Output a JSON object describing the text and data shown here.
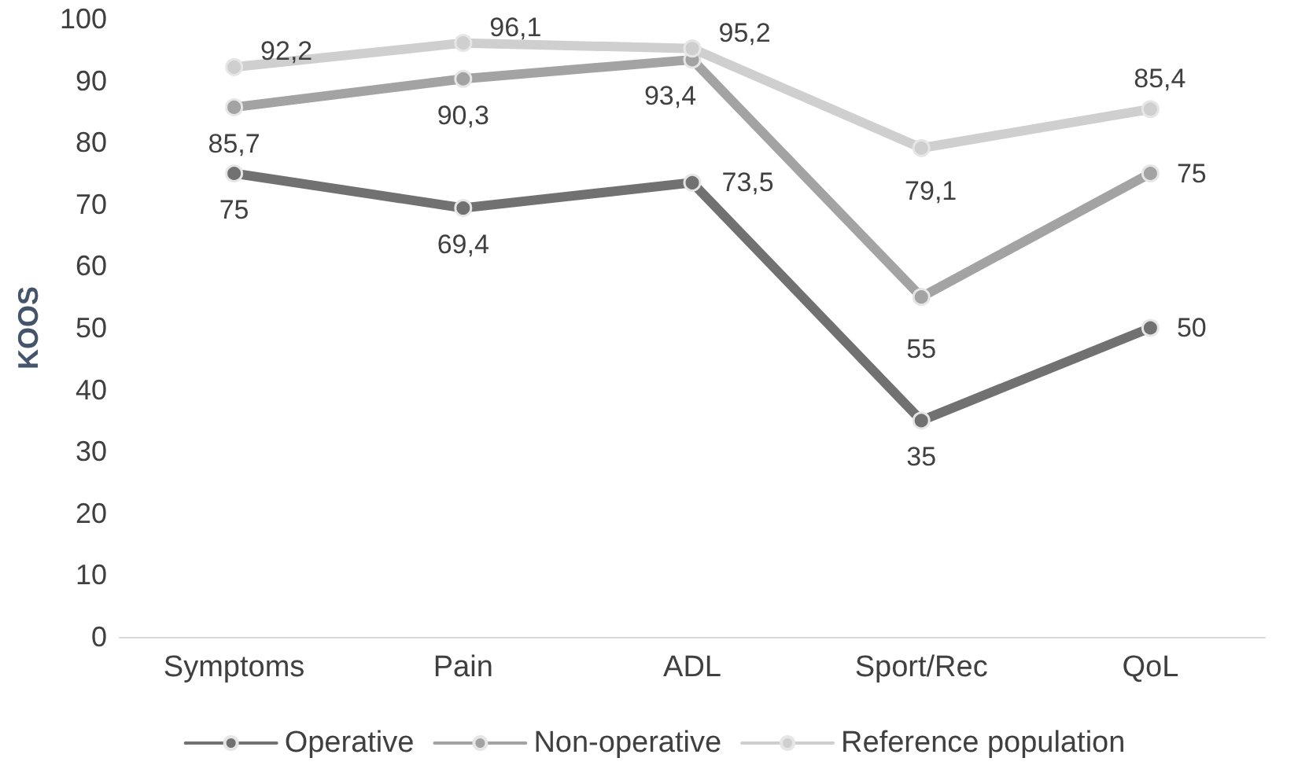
{
  "chart_data": {
    "type": "line",
    "ylabel": "KOOS",
    "categories": [
      "Symptoms",
      "Pain",
      "ADL",
      "Sport/Rec",
      "QoL"
    ],
    "ylim": [
      0,
      100
    ],
    "yticks": [
      0,
      10,
      20,
      30,
      40,
      50,
      60,
      70,
      80,
      90,
      100
    ],
    "grid": false,
    "legend": "bottom",
    "marker": "circle",
    "line_style": "solid",
    "series": [
      {
        "name": "Operative",
        "color": "#717171",
        "values": [
          75,
          69.4,
          73.5,
          35,
          50
        ],
        "value_labels": [
          "75",
          "69,4",
          "73,5",
          "35",
          "50"
        ]
      },
      {
        "name": "Non-operative",
        "color": "#a3a3a3",
        "values": [
          85.7,
          90.3,
          93.4,
          55,
          75
        ],
        "value_labels": [
          "85,7",
          "90,3",
          "93,4",
          "55",
          "75"
        ]
      },
      {
        "name": "Reference population",
        "color": "#cfcfcf",
        "values": [
          92.2,
          96.1,
          95.2,
          79.1,
          85.4
        ],
        "value_labels": [
          "92,2",
          "96,1",
          "95,2",
          "79,1",
          "85,4"
        ]
      }
    ]
  }
}
